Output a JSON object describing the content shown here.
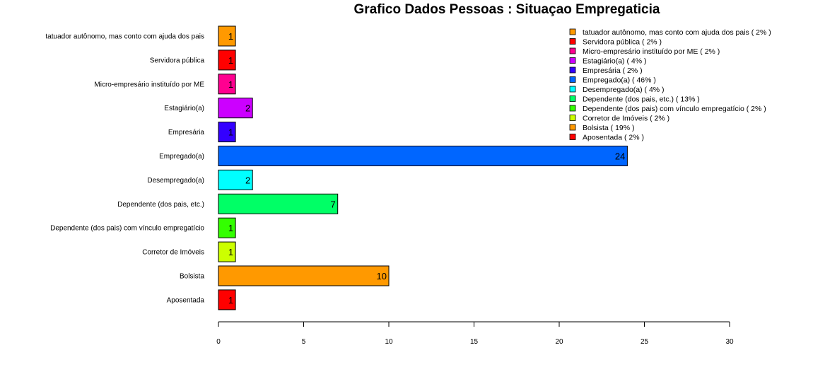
{
  "chart_data": {
    "type": "bar",
    "orientation": "horizontal",
    "title": "Grafico Dados Pessoas : Situaçao Empregaticia",
    "xlabel": "",
    "ylabel": "",
    "xlim": [
      0,
      30
    ],
    "xticks": [
      0,
      5,
      10,
      15,
      20,
      25,
      30
    ],
    "grid": false,
    "legend_position": "top-right",
    "categories": [
      "tatuador autônomo, mas conto com ajuda dos pais",
      "Servidora pública",
      "Micro-empresário instituído por ME",
      "Estagiário(a)",
      "Empresária",
      "Empregado(a)",
      "Desempregado(a)",
      "Dependente (dos pais, etc.)",
      "Dependente (dos pais) com vínculo empregatício",
      "Corretor de Imóveis",
      "Bolsista",
      "Aposentada"
    ],
    "values": [
      1,
      1,
      1,
      2,
      1,
      24,
      2,
      7,
      1,
      1,
      10,
      1
    ],
    "colors": [
      "#FF9900",
      "#FF0000",
      "#FF0090",
      "#CC00FF",
      "#3300FF",
      "#0066FF",
      "#00FFFF",
      "#00FF66",
      "#33FF00",
      "#CCFF00",
      "#FF9900",
      "#FF0000"
    ],
    "legend": [
      "tatuador autônomo, mas conto com ajuda dos pais  ( 2% )",
      "Servidora pública  ( 2% )",
      "Micro-empresário instituído por ME  ( 2% )",
      "Estagiário(a)  ( 4% )",
      "Empresária  ( 2% )",
      "Empregado(a)  ( 46% )",
      "Desempregado(a)  ( 4% )",
      "Dependente (dos pais, etc.)  ( 13% )",
      "Dependente (dos pais) com vínculo empregatício  ( 2% )",
      "Corretor de Imóveis  ( 2% )",
      "Bolsista  ( 19% )",
      "Aposentada  ( 2% )"
    ]
  }
}
